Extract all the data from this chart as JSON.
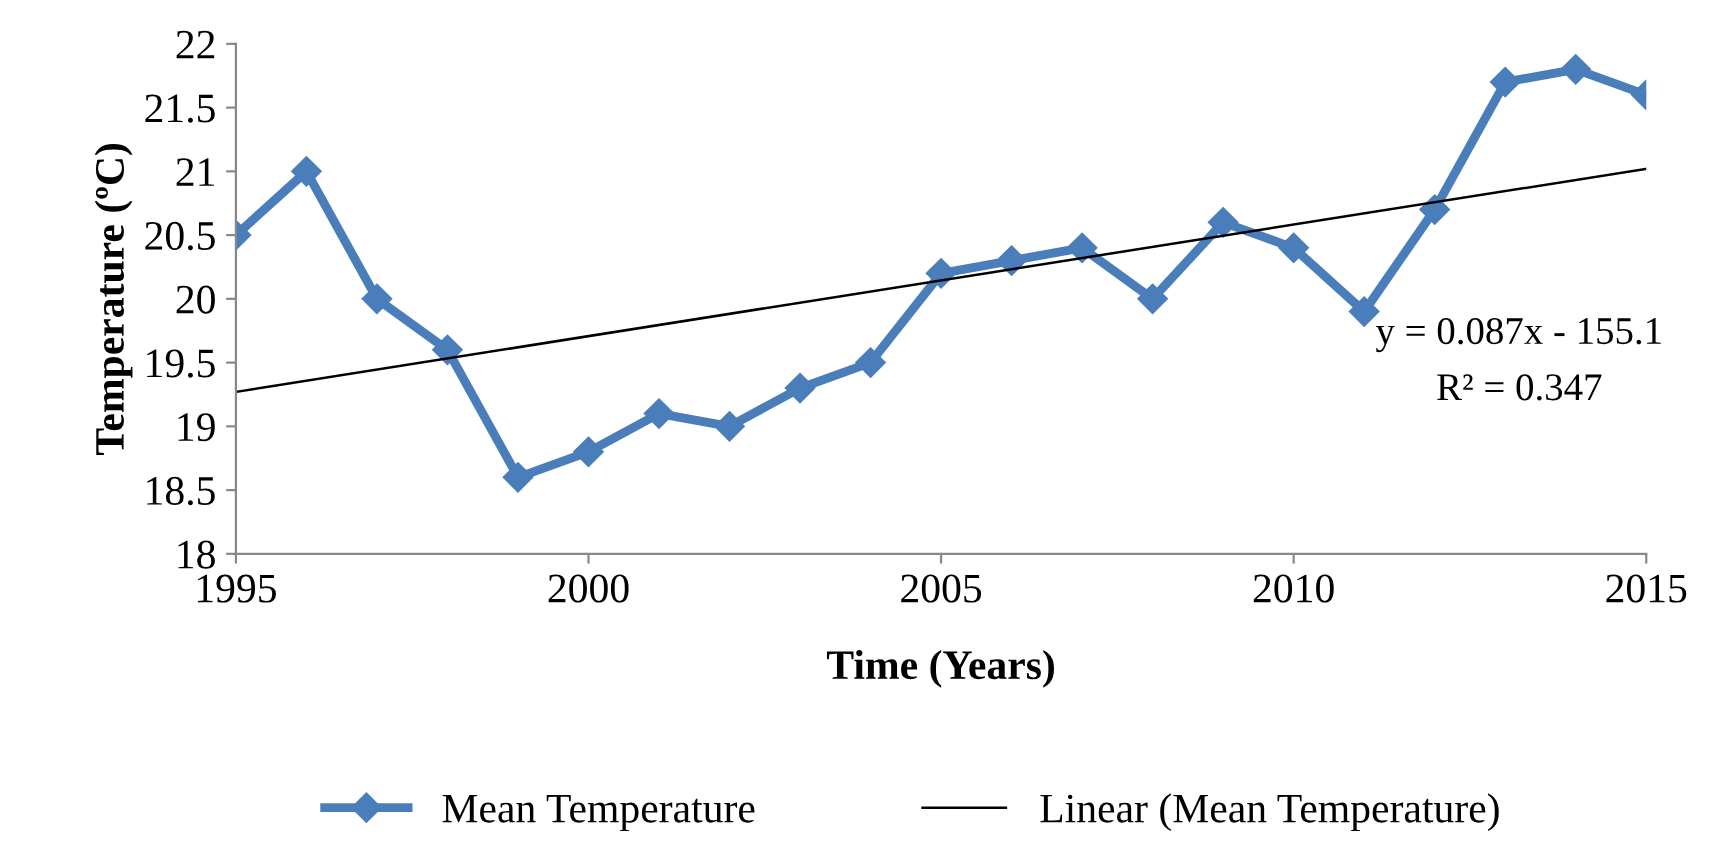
{
  "chart_data": {
    "type": "line",
    "xlabel": "Time (Years)",
    "ylabel": "Temperature (ºC)",
    "x": [
      1995,
      1996,
      1997,
      1998,
      1999,
      2000,
      2001,
      2002,
      2003,
      2004,
      2005,
      2006,
      2007,
      2008,
      2009,
      2010,
      2011,
      2012,
      2013,
      2014,
      2015
    ],
    "series": [
      {
        "name": "Mean Temperature",
        "color": "#4a7ebb",
        "marker": "diamond",
        "values": [
          20.5,
          21.0,
          20.0,
          19.6,
          18.6,
          18.8,
          19.1,
          19.0,
          19.3,
          19.5,
          20.2,
          20.3,
          20.4,
          20.0,
          20.6,
          20.4,
          19.9,
          20.7,
          21.7,
          21.8,
          21.6
        ]
      },
      {
        "name": "Linear (Mean Temperature)",
        "color": "#000000",
        "marker": "none",
        "x": [
          1995,
          2015
        ],
        "values": [
          19.27,
          21.02
        ]
      }
    ],
    "annotations": [
      "y = 0.087x - 155.1",
      "R² = 0.347"
    ],
    "xlim": [
      1995,
      2015
    ],
    "xticks": [
      1995,
      2000,
      2005,
      2010,
      2015
    ],
    "ylim": [
      18,
      22
    ],
    "yticks": [
      18,
      18.5,
      19,
      19.5,
      20,
      20.5,
      21,
      21.5,
      22
    ],
    "grid": false,
    "legend": "bottom"
  }
}
